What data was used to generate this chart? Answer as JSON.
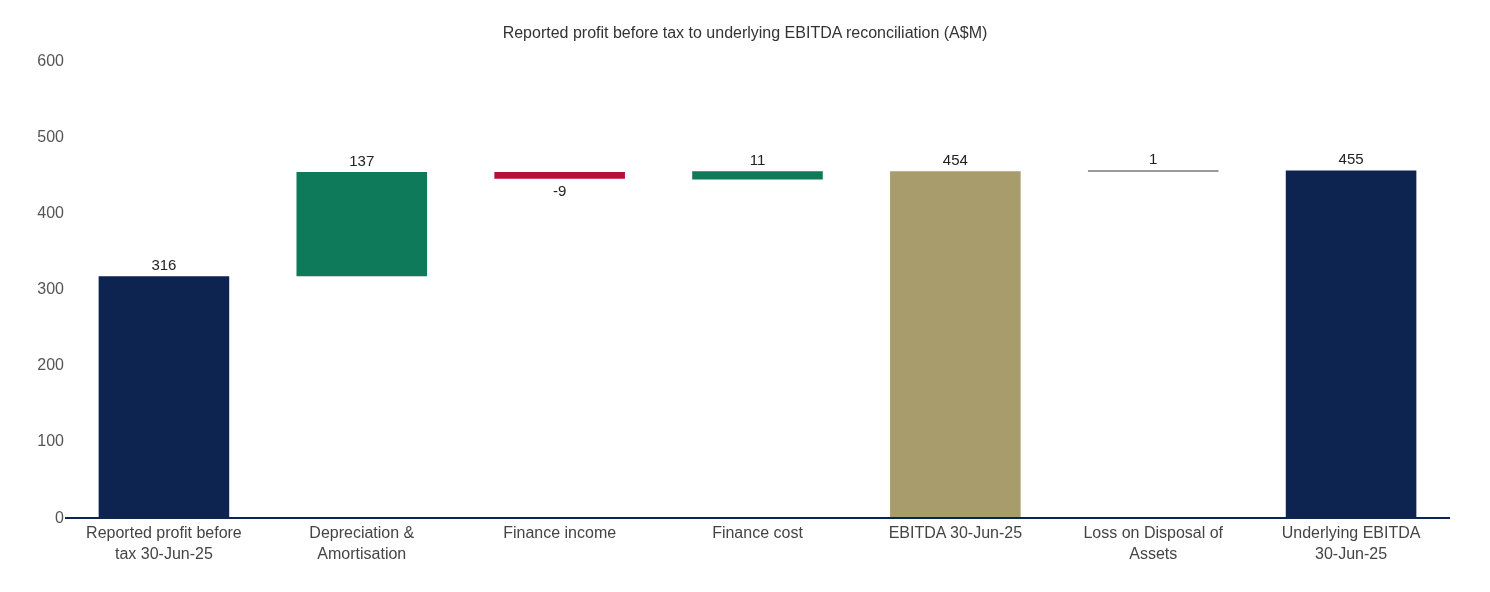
{
  "chart_data": {
    "type": "bar",
    "title": "Reported profit before tax to underlying EBITDA reconciliation (A$M)",
    "categories": [
      "Reported profit before tax 30-Jun-25",
      "Depreciation & Amortisation",
      "Finance income",
      "Finance cost",
      "EBITDA 30-Jun-25",
      "Loss on Disposal of Assets",
      "Underlying EBITDA 30-Jun-25"
    ],
    "values": [
      316,
      137,
      -9,
      11,
      454,
      1,
      455
    ],
    "base": [
      0,
      316,
      453,
      443,
      0,
      454,
      0
    ],
    "colors": [
      "#0d2350",
      "#0e7a5a",
      "#b5123a",
      "#0e7a5a",
      "#a89b6c",
      "#9a9a9a",
      "#0d2350"
    ],
    "ylim": [
      0,
      600
    ],
    "yticks": [
      0,
      100,
      200,
      300,
      400,
      500,
      600
    ],
    "grid": false,
    "data_labels": true
  }
}
